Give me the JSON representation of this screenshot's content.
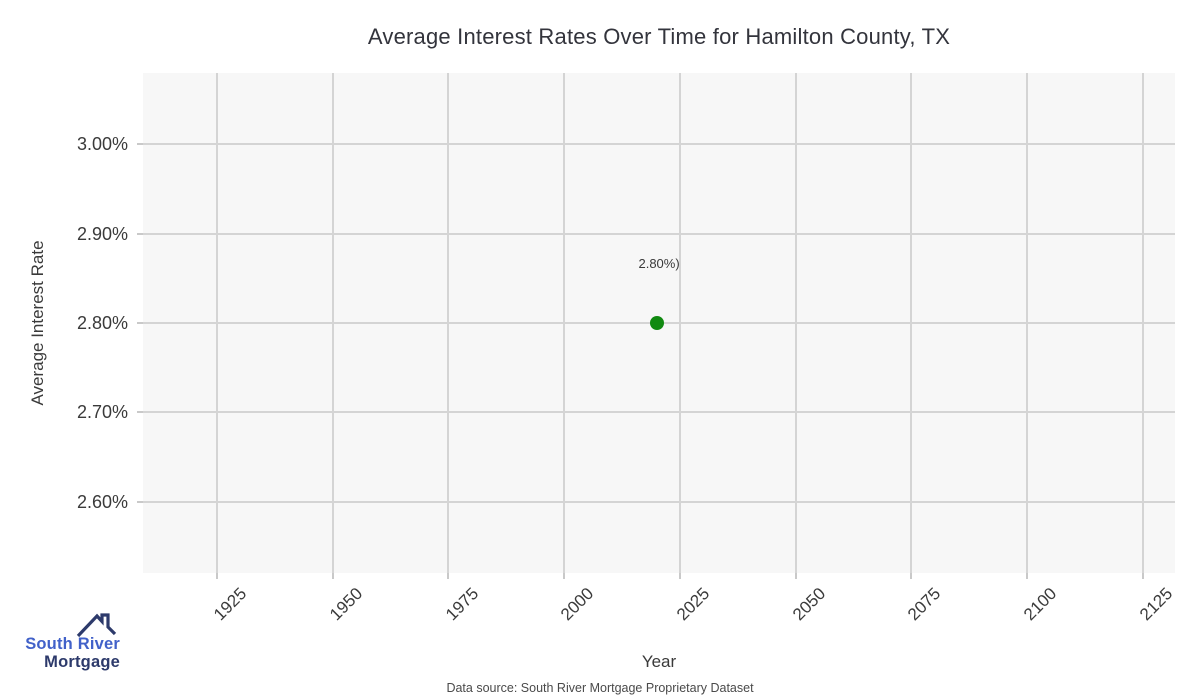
{
  "header": {
    "title": "Average Interest Rates Over Time for Hamilton County, TX"
  },
  "chart_data": {
    "type": "scatter",
    "title": "Average Interest Rates Over Time for Hamilton County, TX",
    "xlabel": "Year",
    "ylabel": "Average Interest Rate",
    "xlim": [
      1909,
      2132
    ],
    "ylim": [
      2.52,
      3.08
    ],
    "x_ticks": [
      1925,
      1950,
      1975,
      2000,
      2025,
      2050,
      2075,
      2100,
      2125
    ],
    "y_ticks": [
      2.6,
      2.7,
      2.8,
      2.9,
      3.0
    ],
    "y_tick_suffix": "%",
    "grid": true,
    "legend": "none",
    "series": [
      {
        "name": "Average Interest Rate",
        "points": [
          {
            "x": 2020,
            "y": 2.8
          }
        ],
        "marker": "circle",
        "color": "#118a11",
        "point_label": "2.80%)"
      }
    ]
  },
  "footer": {
    "data_source": "Data source: South River Mortgage Proprietary Dataset"
  },
  "logo": {
    "line1": "South River",
    "line2": "Mortgage"
  },
  "colors": {
    "plot_bg": "#f7f7f7",
    "grid": "#d4d4d4",
    "tick": "#c9c9c9",
    "text": "#3a3a3a",
    "title_text": "#33343c",
    "point_green": "#118a11",
    "logo_blue": "#4161c9",
    "logo_navy": "#2d3a6b"
  }
}
